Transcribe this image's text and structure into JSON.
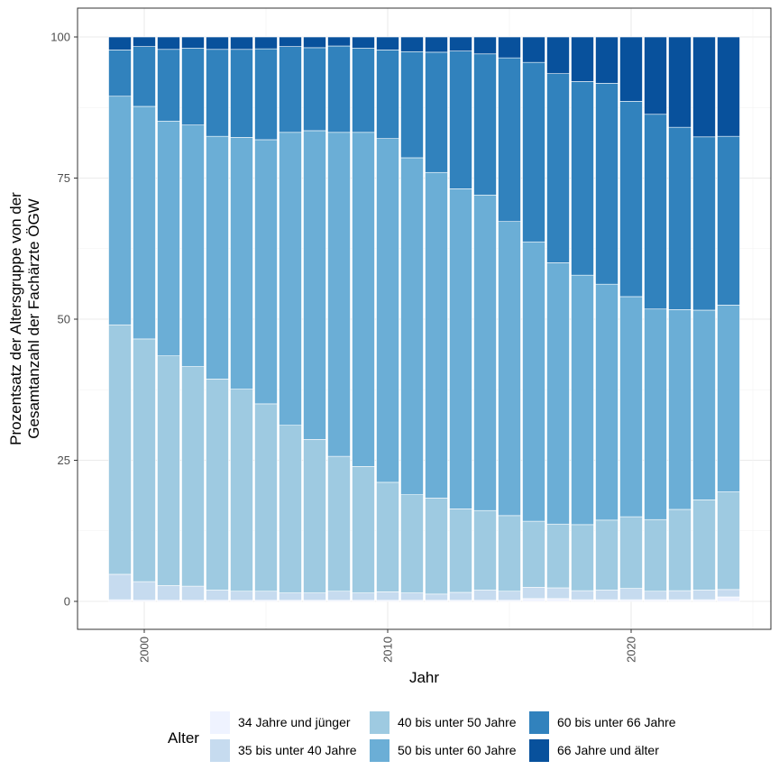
{
  "chart_data": {
    "type": "bar",
    "stacked": "percent",
    "xlabel": "Jahr",
    "ylabel_lines": [
      "Prozentsatz der Altersgruppe von der",
      "Gesamtanzahl der Fachärzte ÖGW"
    ],
    "ylim": [
      0,
      100
    ],
    "yticks": [
      0,
      25,
      50,
      75,
      100
    ],
    "xticks": [
      2000,
      2010,
      2020
    ],
    "grid": true,
    "legend": {
      "title": "Alter",
      "position": "bottom"
    },
    "x": [
      1999,
      2000,
      2001,
      2002,
      2003,
      2004,
      2005,
      2006,
      2007,
      2008,
      2009,
      2010,
      2011,
      2012,
      2013,
      2014,
      2015,
      2016,
      2017,
      2018,
      2019,
      2020,
      2021,
      2022,
      2023,
      2024
    ],
    "series": [
      {
        "name": "34 Jahre und jünger",
        "color": "#eff3ff",
        "values": [
          0.3,
          0.2,
          0.2,
          0.2,
          0.2,
          0.2,
          0.2,
          0.2,
          0.2,
          0.2,
          0.2,
          0.2,
          0.2,
          0.2,
          0.2,
          0.2,
          0.2,
          0.5,
          0.5,
          0.3,
          0.3,
          0.3,
          0.3,
          0.3,
          0.3,
          0.8
        ]
      },
      {
        "name": "35 bis unter 40 Jahre",
        "color": "#c6dbef",
        "values": [
          4.5,
          3.3,
          2.6,
          2.5,
          1.8,
          1.6,
          1.6,
          1.3,
          1.3,
          1.6,
          1.3,
          1.5,
          1.3,
          1.1,
          1.4,
          1.8,
          1.6,
          2.0,
          1.9,
          1.6,
          1.7,
          2.0,
          1.5,
          1.6,
          1.7,
          1.3
        ]
      },
      {
        "name": "40 bis unter 50 Jahre",
        "color": "#9ecae1",
        "values": [
          44.2,
          43.0,
          40.7,
          38.9,
          37.4,
          35.8,
          33.2,
          29.7,
          27.2,
          23.9,
          22.4,
          19.4,
          17.4,
          17.0,
          14.8,
          14.1,
          13.4,
          11.7,
          11.3,
          11.7,
          12.4,
          12.7,
          12.7,
          14.4,
          16.0,
          17.3
        ]
      },
      {
        "name": "50 bis unter 60 Jahre",
        "color": "#6baed6",
        "values": [
          40.5,
          41.2,
          41.6,
          42.8,
          43.0,
          44.6,
          46.8,
          51.9,
          54.7,
          57.4,
          59.2,
          60.9,
          59.7,
          57.7,
          56.7,
          55.9,
          52.1,
          49.5,
          46.3,
          44.2,
          41.8,
          39.0,
          37.3,
          35.4,
          33.6,
          33.1
        ]
      },
      {
        "name": "60 bis unter 66 Jahre",
        "color": "#3182bd",
        "values": [
          8.2,
          10.6,
          12.7,
          13.6,
          15.4,
          15.6,
          16.1,
          15.2,
          14.7,
          15.3,
          14.9,
          15.7,
          18.8,
          21.3,
          24.4,
          25.0,
          29.0,
          31.8,
          33.5,
          34.3,
          35.6,
          34.6,
          34.5,
          32.3,
          30.7,
          29.9
        ]
      },
      {
        "name": "66 Jahre und älter",
        "color": "#08519c",
        "values": [
          2.3,
          1.7,
          2.2,
          2.0,
          2.2,
          2.2,
          2.1,
          1.7,
          1.9,
          1.6,
          2.0,
          2.3,
          2.6,
          2.7,
          2.5,
          3.0,
          3.7,
          4.5,
          6.5,
          7.9,
          8.2,
          11.4,
          13.7,
          16.0,
          17.7,
          17.6
        ]
      }
    ]
  }
}
